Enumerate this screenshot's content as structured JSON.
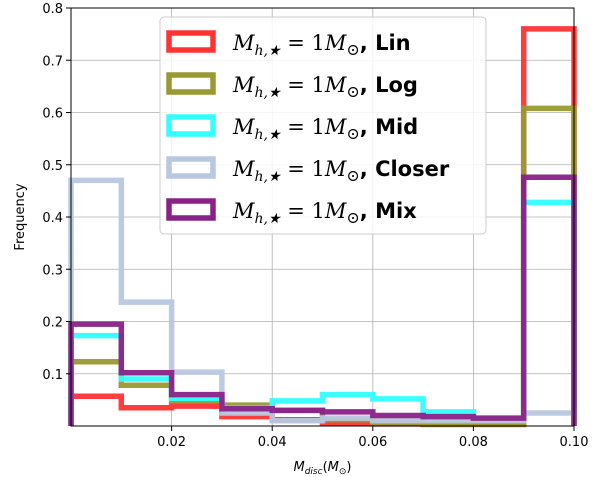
{
  "chart_data": {
    "type": "histogram-step",
    "xlabel": "M_disc(M_⊙)",
    "ylabel": "Frequency",
    "xlim": [
      0.0,
      0.1
    ],
    "ylim": [
      0.0,
      0.8
    ],
    "xticks": [
      "0.02",
      "0.04",
      "0.06",
      "0.08",
      "0.10"
    ],
    "xtick_values": [
      0.02,
      0.04,
      0.06,
      0.08,
      0.1
    ],
    "yticks": [
      "0.1",
      "0.2",
      "0.3",
      "0.4",
      "0.5",
      "0.6",
      "0.7",
      "0.8"
    ],
    "ytick_values": [
      0.1,
      0.2,
      0.3,
      0.4,
      0.5,
      0.6,
      0.7,
      0.8
    ],
    "grid": true,
    "legend_position": "top-center",
    "bin_edges": [
      0.0,
      0.01,
      0.02,
      0.03,
      0.04,
      0.05,
      0.06,
      0.07,
      0.08,
      0.09,
      0.1
    ],
    "series": [
      {
        "name": "M_{h,★} = 1M_⊙, Lin",
        "label_prefix": "Mh,★ = 1M⊙",
        "label_suffix": ", Lin",
        "color": "#ff3333",
        "values": [
          0.057,
          0.035,
          0.038,
          0.018,
          0.012,
          0.005,
          0.004,
          0.003,
          0.003,
          0.76
        ]
      },
      {
        "name": "M_{h,★} = 1M_⊙, Log",
        "label_prefix": "Mh,★ = 1M⊙",
        "label_suffix": ", Log",
        "color": "#999933",
        "values": [
          0.123,
          0.078,
          0.048,
          0.04,
          0.03,
          0.012,
          0.007,
          0.003,
          0.003,
          0.608
        ]
      },
      {
        "name": "M_{h,★} = 1M_⊙, Mid",
        "label_prefix": "Mh,★ = 1M⊙",
        "label_suffix": ", Mid",
        "color": "#33ffff",
        "values": [
          0.173,
          0.09,
          0.053,
          0.034,
          0.048,
          0.06,
          0.052,
          0.027,
          0.013,
          0.428
        ]
      },
      {
        "name": "M_{h,★} = 1M_⊙, Closer",
        "label_prefix": "Mh,★ = 1M⊙",
        "label_suffix": ", Closer",
        "color": "#b8c8e0",
        "values": [
          0.47,
          0.237,
          0.103,
          0.025,
          0.01,
          0.015,
          0.01,
          0.01,
          0.01,
          0.025
        ]
      },
      {
        "name": "M_{h,★} = 1M_⊙, Mix",
        "label_prefix": "Mh,★ = 1M⊙",
        "label_suffix": ", Mix",
        "color": "#882288",
        "values": [
          0.195,
          0.102,
          0.06,
          0.033,
          0.03,
          0.027,
          0.02,
          0.018,
          0.015,
          0.476
        ]
      }
    ]
  }
}
